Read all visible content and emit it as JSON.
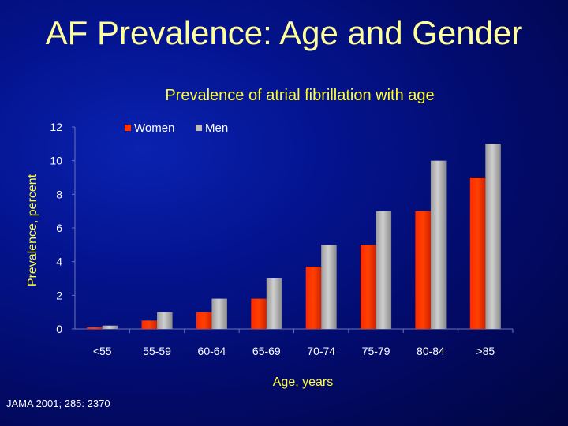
{
  "slide": {
    "title": "AF Prevalence: Age and Gender",
    "footnote": "JAMA 2001; 285: 2370"
  },
  "chart_data": {
    "type": "bar",
    "title": "Prevalence of atrial fibrillation with age",
    "xlabel": "Age, years",
    "ylabel": "Prevalence, percent",
    "categories": [
      "<55",
      "55-59",
      "60-64",
      "65-69",
      "70-74",
      "75-79",
      "80-84",
      ">85"
    ],
    "series": [
      {
        "name": "Women",
        "color": "#ff3300",
        "values": [
          0.1,
          0.5,
          1.0,
          1.8,
          3.7,
          5.0,
          7.0,
          9.0
        ]
      },
      {
        "name": "Men",
        "color": "#bdbdbd",
        "values": [
          0.2,
          1.0,
          1.8,
          3.0,
          5.0,
          7.0,
          10.0,
          11.0
        ]
      }
    ],
    "ylim": [
      0,
      12
    ],
    "yticks": [
      0,
      2,
      4,
      6,
      8,
      10,
      12
    ],
    "grid": false,
    "legend": "top"
  }
}
